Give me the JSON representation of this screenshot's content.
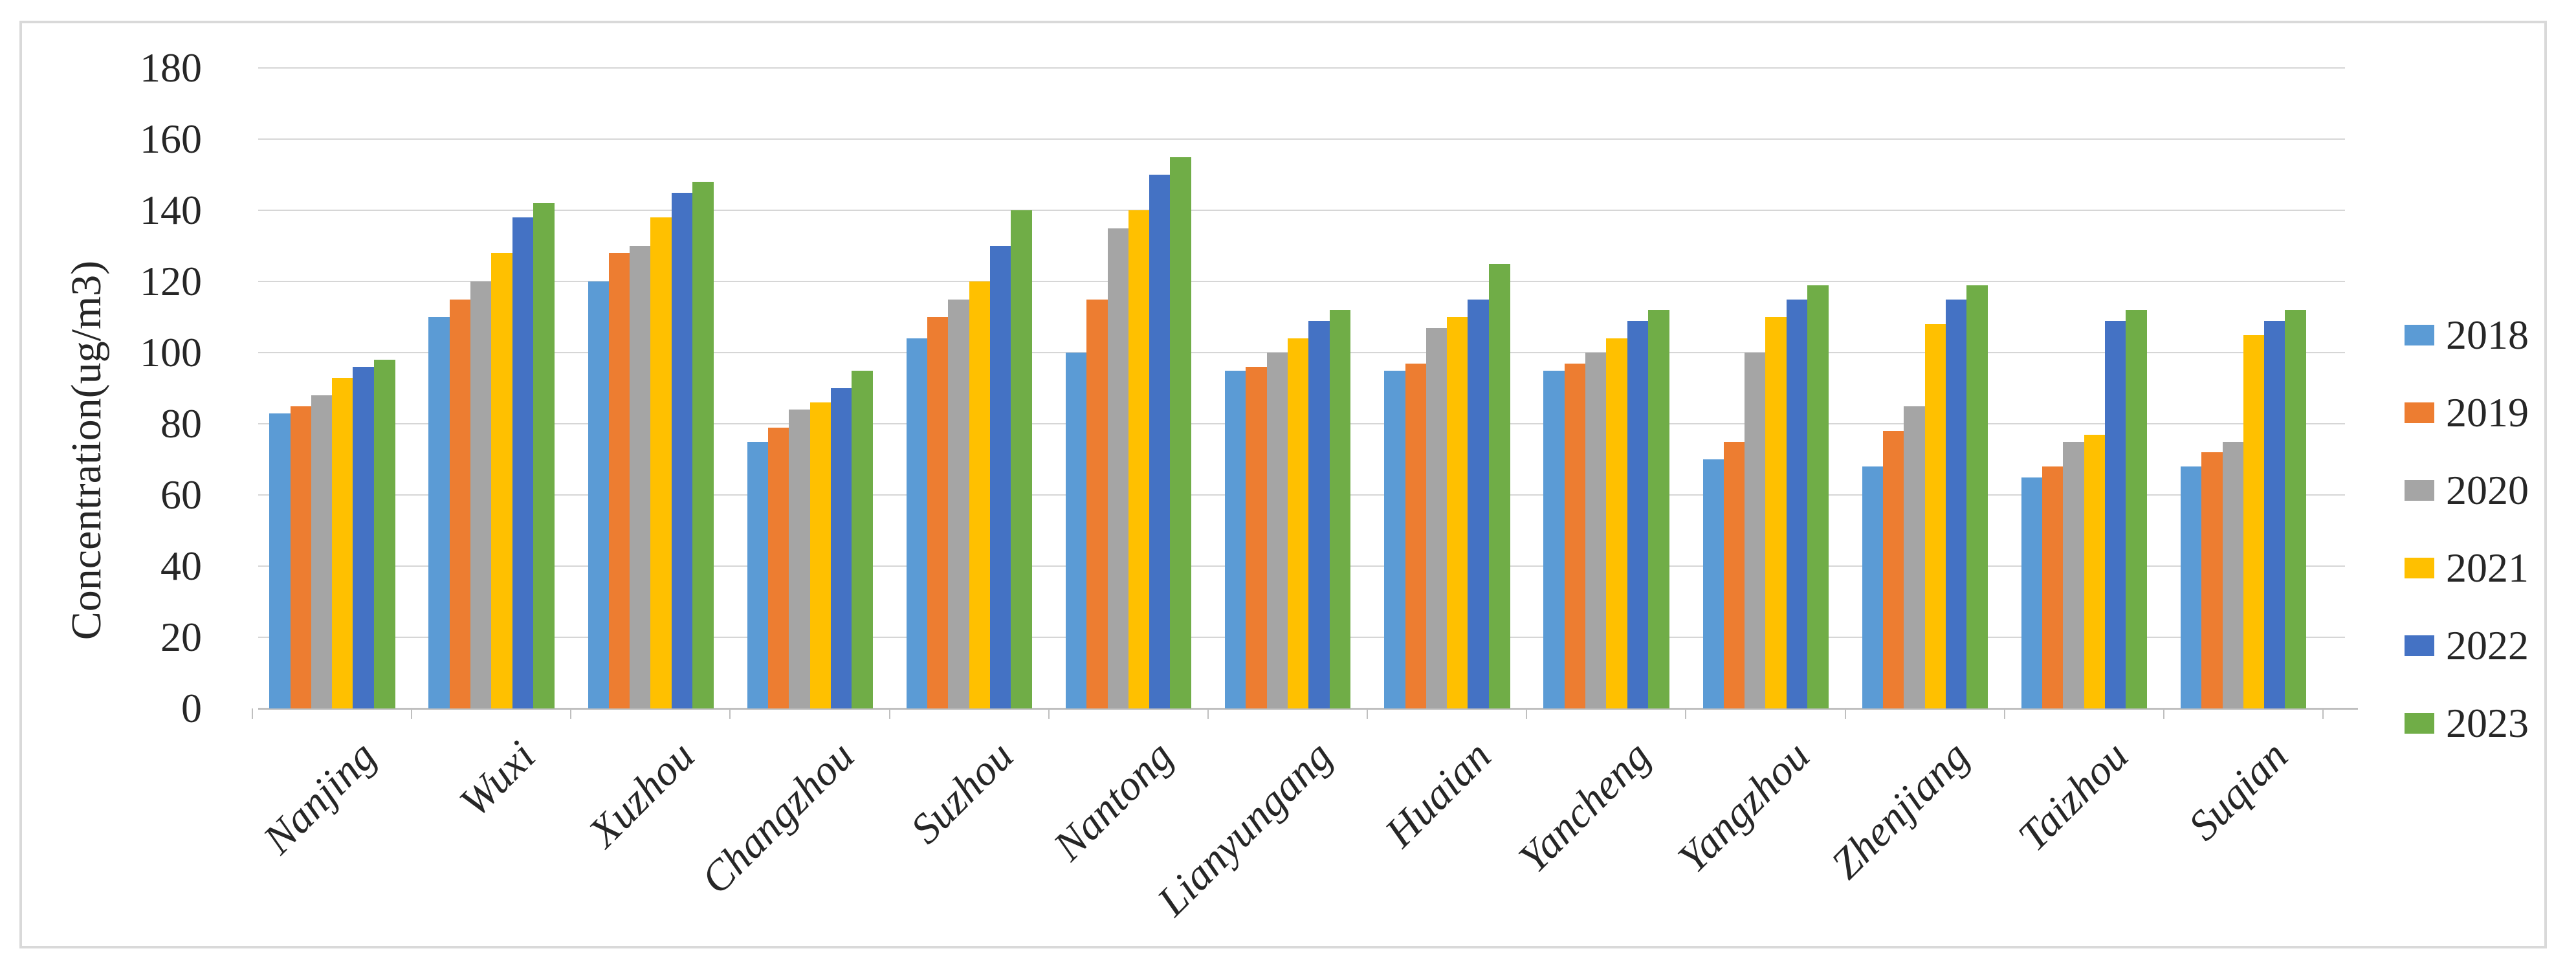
{
  "chart_data": {
    "type": "bar",
    "title": "",
    "ylabel": "Concentration(ug/m3)",
    "xlabel": "",
    "ylim": [
      0,
      180
    ],
    "ytick_step": 20,
    "yticks": [
      0,
      20,
      40,
      60,
      80,
      100,
      120,
      140,
      160,
      180
    ],
    "grid": true,
    "legend_position": "right",
    "categories": [
      "Nanjing",
      "Wuxi",
      "Xuzhou",
      "Changzhou",
      "Suzhou",
      "Nantong",
      "Lianyungang",
      "Huaian",
      "Yancheng",
      "Yangzhou",
      "Zhenjiang",
      "Taizhou",
      "Suqian"
    ],
    "series": [
      {
        "name": "2018",
        "color": "#5B9BD5",
        "values": [
          83,
          110,
          120,
          75,
          104,
          100,
          95,
          95,
          95,
          70,
          68,
          65,
          68
        ]
      },
      {
        "name": "2019",
        "color": "#ED7D31",
        "values": [
          85,
          115,
          128,
          79,
          110,
          115,
          96,
          97,
          97,
          75,
          78,
          68,
          72
        ]
      },
      {
        "name": "2020",
        "color": "#A5A5A5",
        "values": [
          88,
          120,
          130,
          84,
          115,
          135,
          100,
          107,
          100,
          100,
          85,
          75,
          75
        ]
      },
      {
        "name": "2021",
        "color": "#FFC000",
        "values": [
          93,
          128,
          138,
          86,
          120,
          140,
          104,
          110,
          104,
          110,
          108,
          77,
          105
        ]
      },
      {
        "name": "2022",
        "color": "#4472C4",
        "values": [
          96,
          138,
          145,
          90,
          130,
          150,
          109,
          115,
          109,
          115,
          115,
          109,
          109
        ]
      },
      {
        "name": "2023",
        "color": "#70AD47",
        "values": [
          98,
          142,
          148,
          95,
          140,
          155,
          112,
          125,
          112,
          119,
          119,
          112,
          112
        ]
      }
    ]
  },
  "frame": {
    "border_color": "#D9D9D9",
    "gridline_color": "#D6D6D6",
    "axis_color": "#BFBFBF"
  }
}
